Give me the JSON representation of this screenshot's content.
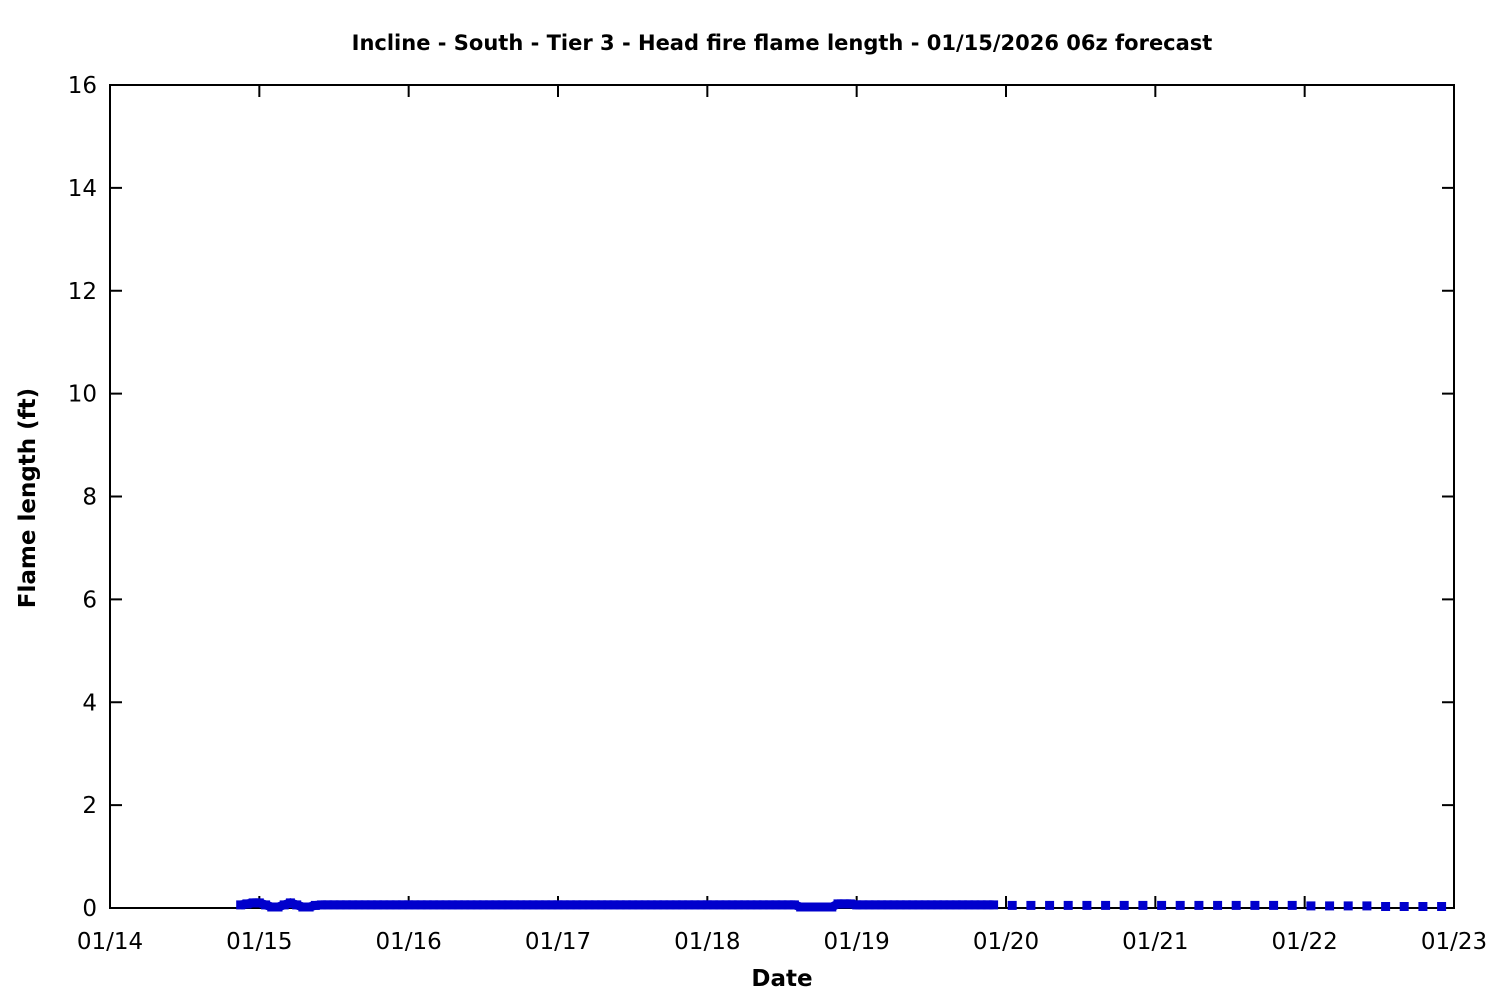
{
  "chart_data": {
    "type": "line",
    "title": "Incline - South - Tier 3 - Head fire flame length - 01/15/2026 06z forecast",
    "xlabel": "Date",
    "ylabel": "Flame length (ft)",
    "xlim_days": [
      0,
      9
    ],
    "ylim": [
      0,
      16
    ],
    "grid": false,
    "legend_position": "none",
    "axis_color": "#000000",
    "series_color": "#0000cc",
    "x_ticks": [
      {
        "label": "01/14",
        "day": 0
      },
      {
        "label": "01/15",
        "day": 1
      },
      {
        "label": "01/16",
        "day": 2
      },
      {
        "label": "01/17",
        "day": 3
      },
      {
        "label": "01/18",
        "day": 4
      },
      {
        "label": "01/19",
        "day": 5
      },
      {
        "label": "01/20",
        "day": 6
      },
      {
        "label": "01/21",
        "day": 7
      },
      {
        "label": "01/22",
        "day": 8
      },
      {
        "label": "01/23",
        "day": 9
      }
    ],
    "y_ticks": [
      {
        "label": "0",
        "value": 0
      },
      {
        "label": "2",
        "value": 2
      },
      {
        "label": "4",
        "value": 4
      },
      {
        "label": "6",
        "value": 6
      },
      {
        "label": "8",
        "value": 8
      },
      {
        "label": "10",
        "value": 10
      },
      {
        "label": "12",
        "value": 12
      },
      {
        "label": "14",
        "value": 14
      },
      {
        "label": "16",
        "value": 16
      }
    ],
    "series": [
      {
        "name": "hourly-solid-band",
        "style": "thick-solid-line-with-square-markers",
        "unit": "ft",
        "start_day": 0.875,
        "step_days": 0.0416667,
        "values": [
          0.06,
          0.08,
          0.1,
          0.1,
          0.06,
          0.02,
          0.02,
          0.06,
          0.1,
          0.06,
          0.02,
          0.02,
          0.05,
          0.06,
          0.06,
          0.06,
          0.06,
          0.06,
          0.06,
          0.06,
          0.06,
          0.06,
          0.06,
          0.06,
          0.06,
          0.06,
          0.06,
          0.06,
          0.06,
          0.06,
          0.06,
          0.06,
          0.06,
          0.06,
          0.06,
          0.06,
          0.06,
          0.06,
          0.06,
          0.06,
          0.06,
          0.06,
          0.06,
          0.06,
          0.06,
          0.06,
          0.06,
          0.06,
          0.06,
          0.06,
          0.06,
          0.06,
          0.06,
          0.06,
          0.06,
          0.06,
          0.06,
          0.06,
          0.06,
          0.06,
          0.06,
          0.06,
          0.06,
          0.06,
          0.06,
          0.06,
          0.06,
          0.06,
          0.06,
          0.06,
          0.06,
          0.06,
          0.06,
          0.06,
          0.06,
          0.06,
          0.06,
          0.06,
          0.06,
          0.06,
          0.06,
          0.06,
          0.06,
          0.06,
          0.06,
          0.06,
          0.06,
          0.06,
          0.06,
          0.06,
          0.02,
          0.02,
          0.02,
          0.02,
          0.02,
          0.02,
          0.08,
          0.08,
          0.08,
          0.06,
          0.06,
          0.06,
          0.06,
          0.06,
          0.06,
          0.06,
          0.06,
          0.06,
          0.06,
          0.06,
          0.06,
          0.06,
          0.06,
          0.06,
          0.06,
          0.06,
          0.06,
          0.06,
          0.06,
          0.06,
          0.06,
          0.06
        ]
      },
      {
        "name": "three-hourly-square-points",
        "style": "square-points",
        "unit": "ft",
        "start_day": 6.0417,
        "step_days": 0.125,
        "values": [
          0.05,
          0.05,
          0.05,
          0.05,
          0.05,
          0.05,
          0.05,
          0.05,
          0.05,
          0.05,
          0.05,
          0.05,
          0.05,
          0.05,
          0.05,
          0.05,
          0.04,
          0.04,
          0.04,
          0.04,
          0.03,
          0.03,
          0.03,
          0.03
        ]
      }
    ]
  }
}
